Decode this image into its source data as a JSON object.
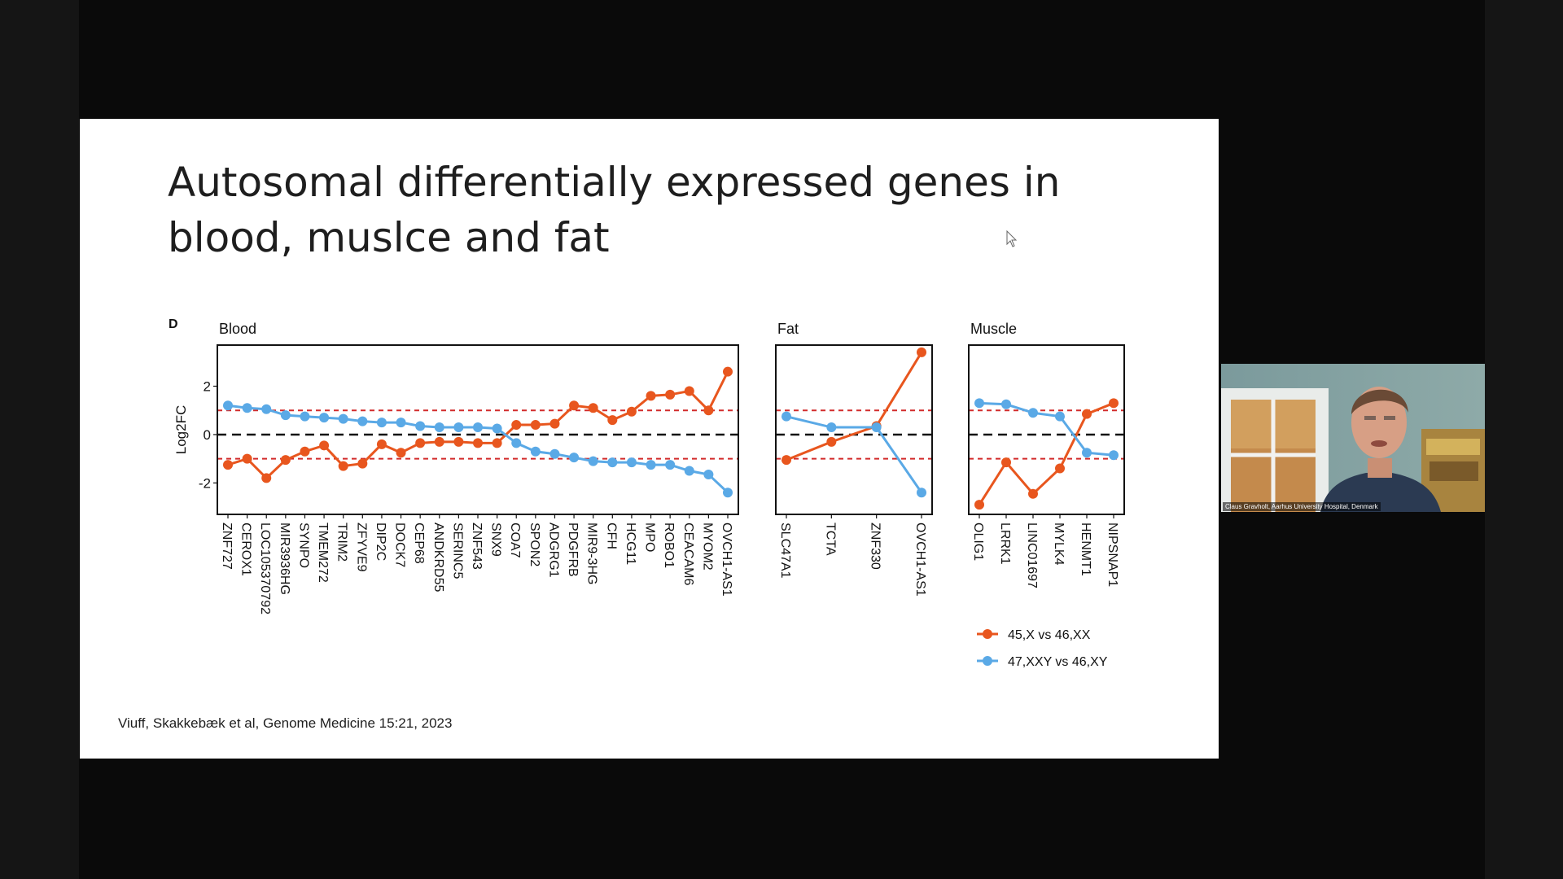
{
  "slide": {
    "title": "Autosomal differentially expressed genes in blood, muslce and fat",
    "citation": "Viuff, Skakkebæk et al, Genome Medicine 15:21, 2023"
  },
  "webcam": {
    "caption": "Claus Gravholt, Aarhus University Hospital, Denmark"
  },
  "chart_data": {
    "type": "line",
    "panel_tag": "D",
    "ylabel": "Log2FC",
    "ylim": [
      -3.3,
      3.7
    ],
    "yticks": [
      -2,
      0,
      2
    ],
    "reference_lines": {
      "zero": 0,
      "thresholds": [
        1,
        -1
      ]
    },
    "legend_position": "bottom-right",
    "colors": {
      "s1": "#e8561e",
      "s2": "#5aa9e6",
      "threshold": "#d22b2b",
      "zero": "#111111"
    },
    "legend": [
      {
        "label": "45,X vs 46,XX",
        "color": "#e8561e"
      },
      {
        "label": "47,XXY vs 46,XY",
        "color": "#5aa9e6"
      }
    ],
    "panels": [
      {
        "title": "Blood",
        "categories": [
          "ZNF727",
          "CEROX1",
          "LOC105370792",
          "MIR3936HG",
          "SYNPO",
          "TMEM272",
          "TRIM2",
          "ZFYVE9",
          "DIP2C",
          "DOCK7",
          "CEP68",
          "ANDKRD55",
          "SERINC5",
          "ZNF543",
          "SNX9",
          "COA7",
          "SPON2",
          "ADGRG1",
          "PDGFRB",
          "MIR9-3HG",
          "CFH",
          "HCG11",
          "MPO",
          "ROBO1",
          "CEACAM6",
          "MYOM2",
          "OVCH1-AS1"
        ],
        "series": [
          {
            "values": [
              -1.25,
              -1.0,
              -1.8,
              -1.05,
              -0.7,
              -0.45,
              -1.3,
              -1.2,
              -0.4,
              -0.75,
              -0.35,
              -0.3,
              -0.3,
              -0.35,
              -0.35,
              0.4,
              0.4,
              0.45,
              1.2,
              1.1,
              0.6,
              0.95,
              1.6,
              1.65,
              1.8,
              1.0,
              2.6
            ]
          },
          {
            "values": [
              1.2,
              1.1,
              1.05,
              0.8,
              0.75,
              0.7,
              0.65,
              0.55,
              0.5,
              0.5,
              0.35,
              0.3,
              0.3,
              0.3,
              0.25,
              -0.35,
              -0.7,
              -0.8,
              -0.95,
              -1.1,
              -1.15,
              -1.15,
              -1.25,
              -1.25,
              -1.5,
              -1.65,
              -2.4
            ]
          }
        ]
      },
      {
        "title": "Fat",
        "categories": [
          "SLC47A1",
          "TCTA",
          "ZNF330",
          "OVCH1-AS1"
        ],
        "series": [
          {
            "values": [
              -1.05,
              -0.3,
              0.35,
              3.4
            ]
          },
          {
            "values": [
              0.75,
              0.3,
              0.3,
              -2.4
            ]
          }
        ]
      },
      {
        "title": "Muscle",
        "categories": [
          "OLIG1",
          "LRRK1",
          "LINC01697",
          "MYLK4",
          "HENMT1",
          "NIPSNAP1"
        ],
        "series": [
          {
            "values": [
              -2.9,
              -1.15,
              -2.45,
              -1.4,
              0.85,
              1.3
            ]
          },
          {
            "values": [
              1.3,
              1.25,
              0.9,
              0.75,
              -0.75,
              -0.85
            ]
          }
        ]
      }
    ]
  }
}
